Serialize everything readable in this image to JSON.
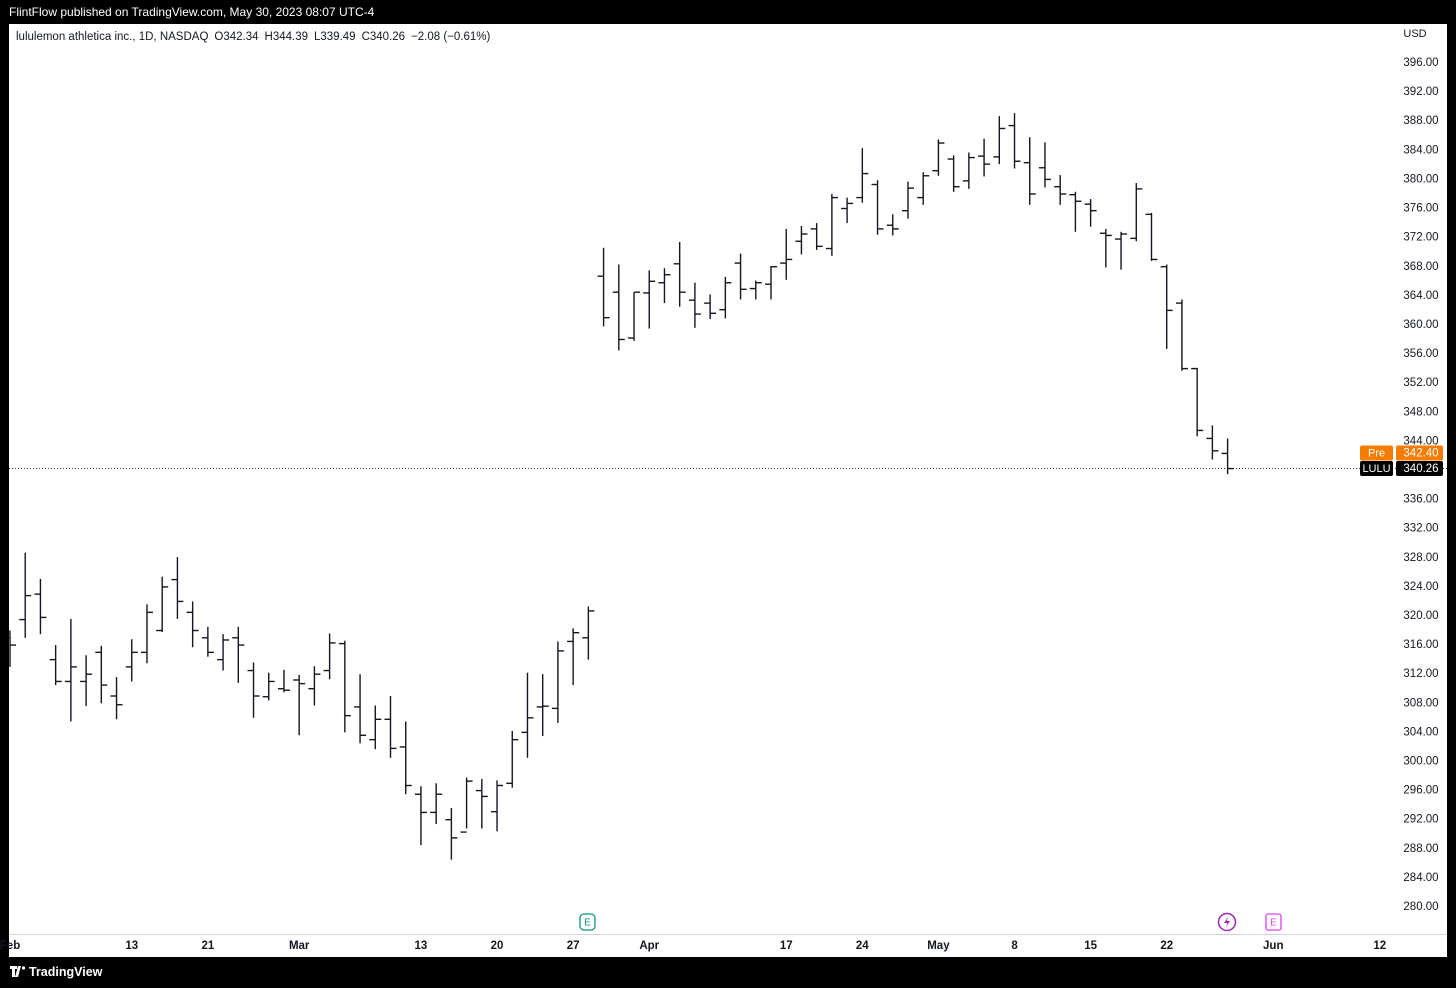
{
  "header": {
    "published": "FlintFlow published on TradingView.com, May 30, 2023 08:07 UTC-4"
  },
  "footer": {
    "brand": "TradingView"
  },
  "chart_data": {
    "type": "ohlc",
    "symbol_info": "lululemon athletica inc., 1D, NASDAQ",
    "legend": [
      "O342.34",
      "H344.39",
      "L339.49",
      "C340.26",
      "−2.08 (−0.61%)"
    ],
    "currency": "USD",
    "color": "#131722",
    "categories": [
      "Feb",
      null,
      null,
      null,
      null,
      null,
      null,
      null,
      "13",
      null,
      null,
      null,
      null,
      "21",
      null,
      null,
      null,
      null,
      null,
      "Mar",
      null,
      null,
      null,
      null,
      null,
      null,
      null,
      "13",
      null,
      null,
      null,
      null,
      "20",
      null,
      null,
      null,
      null,
      "27",
      null,
      null,
      null,
      null,
      "Apr",
      null,
      null,
      null,
      null,
      null,
      null,
      null,
      null,
      "17",
      null,
      null,
      null,
      null,
      "24",
      null,
      null,
      null,
      null,
      "May",
      null,
      null,
      null,
      null,
      "8",
      null,
      null,
      null,
      null,
      "15",
      null,
      null,
      null,
      null,
      "22",
      null,
      null,
      null,
      null,
      null,
      null,
      "Jun",
      null,
      null,
      null,
      null,
      null,
      null,
      "12"
    ],
    "open": [
      317,
      319.5,
      323,
      314,
      311,
      311,
      315,
      309,
      313,
      315,
      318,
      325,
      320.5,
      317,
      314,
      317,
      312.5,
      308.9,
      310,
      311.2,
      310,
      312.5,
      316.2,
      307.5,
      303,
      305.8,
      302,
      295.5,
      293,
      292,
      290.3,
      296,
      293.1,
      297,
      304,
      307.5,
      307.3,
      316.5,
      317,
      366.7,
      364.5,
      358.2,
      364.4,
      365.8,
      368.4,
      363.4,
      363,
      362.1,
      368.5,
      365,
      365.6,
      368.5,
      371.5,
      373.2,
      370.5,
      376,
      377.5,
      379.3,
      373.7,
      375.7,
      377.5,
      381.2,
      382.8,
      379.8,
      383.2,
      383.1,
      387.4,
      382.3,
      381.6,
      379,
      377.9,
      376.6,
      372.6,
      371.8,
      371.9,
      375.2,
      368,
      363,
      354,
      344.4,
      342.34,
      null,
      null,
      null,
      null,
      null,
      null,
      null,
      null,
      null,
      null
    ],
    "high": [
      318,
      328.7,
      325.1,
      316,
      319.6,
      314.6,
      315.9,
      311.6,
      316.8,
      321.6,
      325.4,
      328.1,
      322,
      318.5,
      317.5,
      318.5,
      313.6,
      312.2,
      312.6,
      311.9,
      313.1,
      317.6,
      316.6,
      312,
      307.7,
      309,
      305.5,
      296.6,
      297,
      293.6,
      297.8,
      297.6,
      297.4,
      304.2,
      312.2,
      312,
      316.5,
      318.3,
      321.3,
      370.6,
      368.3,
      364.5,
      367.5,
      367.8,
      371.4,
      365.8,
      364.2,
      366.6,
      369.8,
      366.1,
      368.1,
      373.2,
      373.6,
      374,
      378,
      377.5,
      384.3,
      379.9,
      375.2,
      379.7,
      381,
      385.5,
      383.3,
      383.7,
      385.6,
      388.7,
      389.1,
      385.8,
      385.1,
      380.6,
      378.3,
      377.3,
      373.2,
      372.8,
      379.5,
      375.4,
      368.3,
      363.5,
      354.1,
      346.2,
      344.39,
      null,
      null,
      null,
      null,
      null,
      null,
      null,
      null,
      null,
      null
    ],
    "low": [
      313,
      317,
      317.5,
      310.5,
      305.5,
      307.6,
      308,
      305.8,
      311,
      313.5,
      317.8,
      319.6,
      315.7,
      314.4,
      312.5,
      310.8,
      306,
      308.4,
      309.5,
      303.6,
      307.7,
      311.3,
      304,
      302.5,
      301.7,
      300.5,
      295.5,
      288.5,
      291.4,
      286.5,
      290.8,
      290.8,
      290.4,
      296.4,
      300.5,
      303.5,
      305.3,
      310.5,
      314,
      359.8,
      356.5,
      357.8,
      359.5,
      363,
      362.5,
      359.6,
      360.8,
      360.9,
      363.5,
      363.5,
      363.5,
      366.2,
      369.7,
      370.3,
      369.5,
      374,
      376.8,
      372.4,
      372.3,
      374.6,
      376.5,
      380.5,
      378.3,
      378.7,
      380.4,
      382.1,
      381.5,
      376.5,
      378.9,
      376.5,
      372.8,
      373.5,
      367.9,
      367.6,
      371.5,
      368.8,
      356.7,
      353.7,
      344.7,
      341.5,
      339.49,
      null,
      null,
      null,
      null,
      null,
      null,
      null,
      null,
      null,
      null
    ],
    "close": [
      316,
      322.8,
      319.8,
      311,
      313,
      312,
      310.5,
      307.8,
      315,
      320.5,
      324,
      322,
      318,
      315,
      316.7,
      316,
      309,
      311,
      309.8,
      310.7,
      312,
      316.3,
      306.3,
      303.6,
      305.8,
      301.8,
      296.7,
      293,
      295.5,
      289.5,
      297.3,
      295.2,
      296.7,
      303,
      306,
      307.6,
      315.2,
      317.7,
      320.7,
      361,
      358,
      364.5,
      366,
      366.9,
      364.5,
      361.5,
      361.6,
      365.8,
      364.9,
      365.8,
      368,
      369,
      372.5,
      370.8,
      377.5,
      376.7,
      380.8,
      373.2,
      373.2,
      378.8,
      380.5,
      385,
      379,
      383,
      382.1,
      387,
      382.5,
      378,
      380,
      378,
      377,
      375.7,
      372.3,
      372.5,
      378.7,
      369,
      362,
      354,
      345.5,
      342.7,
      340.26,
      null,
      null,
      null,
      null,
      null,
      null,
      null,
      null,
      null,
      null
    ],
    "ylim": [
      276.29,
      401.36
    ],
    "yticks": [
      {
        "value": 280,
        "label": "280.00"
      },
      {
        "value": 284,
        "label": "284.00"
      },
      {
        "value": 288,
        "label": "288.00"
      },
      {
        "value": 292,
        "label": "292.00"
      },
      {
        "value": 296,
        "label": "296.00"
      },
      {
        "value": 300,
        "label": "300.00"
      },
      {
        "value": 304,
        "label": "304.00"
      },
      {
        "value": 308,
        "label": "308.00"
      },
      {
        "value": 312,
        "label": "312.00"
      },
      {
        "value": 316,
        "label": "316.00"
      },
      {
        "value": 320,
        "label": "320.00"
      },
      {
        "value": 324,
        "label": "324.00"
      },
      {
        "value": 328,
        "label": "328.00"
      },
      {
        "value": 332,
        "label": "332.00"
      },
      {
        "value": 336,
        "label": "336.00"
      },
      {
        "value": 344,
        "label": "344.00"
      },
      {
        "value": 348,
        "label": "348.00"
      },
      {
        "value": 352,
        "label": "352.00"
      },
      {
        "value": 356,
        "label": "356.00"
      },
      {
        "value": 360,
        "label": "360.00"
      },
      {
        "value": 364,
        "label": "364.00"
      },
      {
        "value": 368,
        "label": "368.00"
      },
      {
        "value": 372,
        "label": "372.00"
      },
      {
        "value": 376,
        "label": "376.00"
      },
      {
        "value": 380,
        "label": "380.00"
      },
      {
        "value": 384,
        "label": "384.00"
      },
      {
        "value": 388,
        "label": "388.00"
      },
      {
        "value": 392,
        "label": "392.00"
      },
      {
        "value": 396,
        "label": "396.00"
      }
    ],
    "grid": false,
    "premarket": {
      "label": "Pre",
      "value": 342.4,
      "value_label": "342.40",
      "color": "#f57c00"
    },
    "last": {
      "label": "LULU",
      "value": 340.26,
      "color": "#000000"
    },
    "events": [
      "E",
      "E"
    ]
  }
}
